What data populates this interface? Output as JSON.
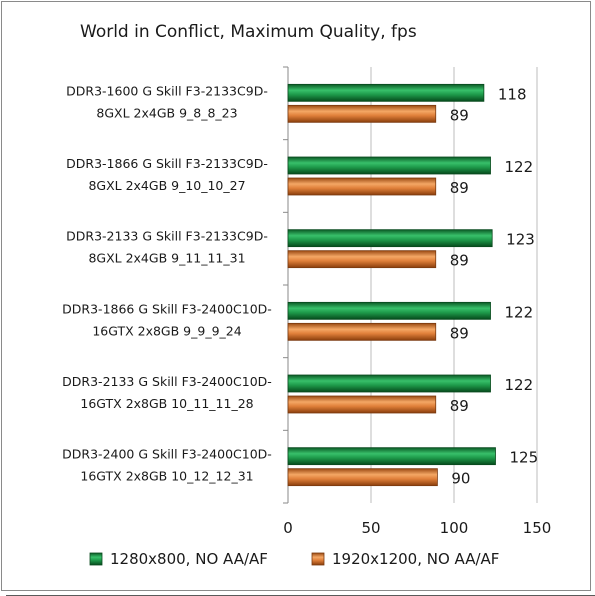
{
  "chart_data": {
    "type": "bar",
    "orientation": "horizontal",
    "title": "World in Conflict, Maximum Quality,  fps",
    "categories": [
      [
        "DDR3-1600 G Skill  F3-2133C9D-",
        "8GXL 2x4GB  9_8_8_23"
      ],
      [
        "DDR3-1866 G Skill  F3-2133C9D-",
        "8GXL 2x4GB  9_10_10_27"
      ],
      [
        "DDR3-2133 G Skill  F3-2133C9D-",
        "8GXL 2x4GB  9_11_11_31"
      ],
      [
        "DDR3-1866 G Skill  F3-2400C10D-",
        "16GTX 2x8GB  9_9_9_24"
      ],
      [
        "DDR3-2133 G Skill  F3-2400C10D-",
        "16GTX 2x8GB  10_11_11_28"
      ],
      [
        "DDR3-2400 G Skill  F3-2400C10D-",
        "16GTX 2x8GB  10_12_12_31"
      ]
    ],
    "series": [
      {
        "name": "1280x800, NO AA/AF",
        "color": "#1f9a4a",
        "values": [
          118,
          122,
          123,
          122,
          122,
          125
        ]
      },
      {
        "name": "1920x1200, NO AA/AF",
        "color": "#e0803a",
        "values": [
          89,
          89,
          89,
          89,
          89,
          90
        ]
      }
    ],
    "xlim": [
      0,
      150
    ],
    "xticks": [
      0,
      50,
      100,
      150
    ],
    "grid": "vertical",
    "legend": "bottom"
  }
}
